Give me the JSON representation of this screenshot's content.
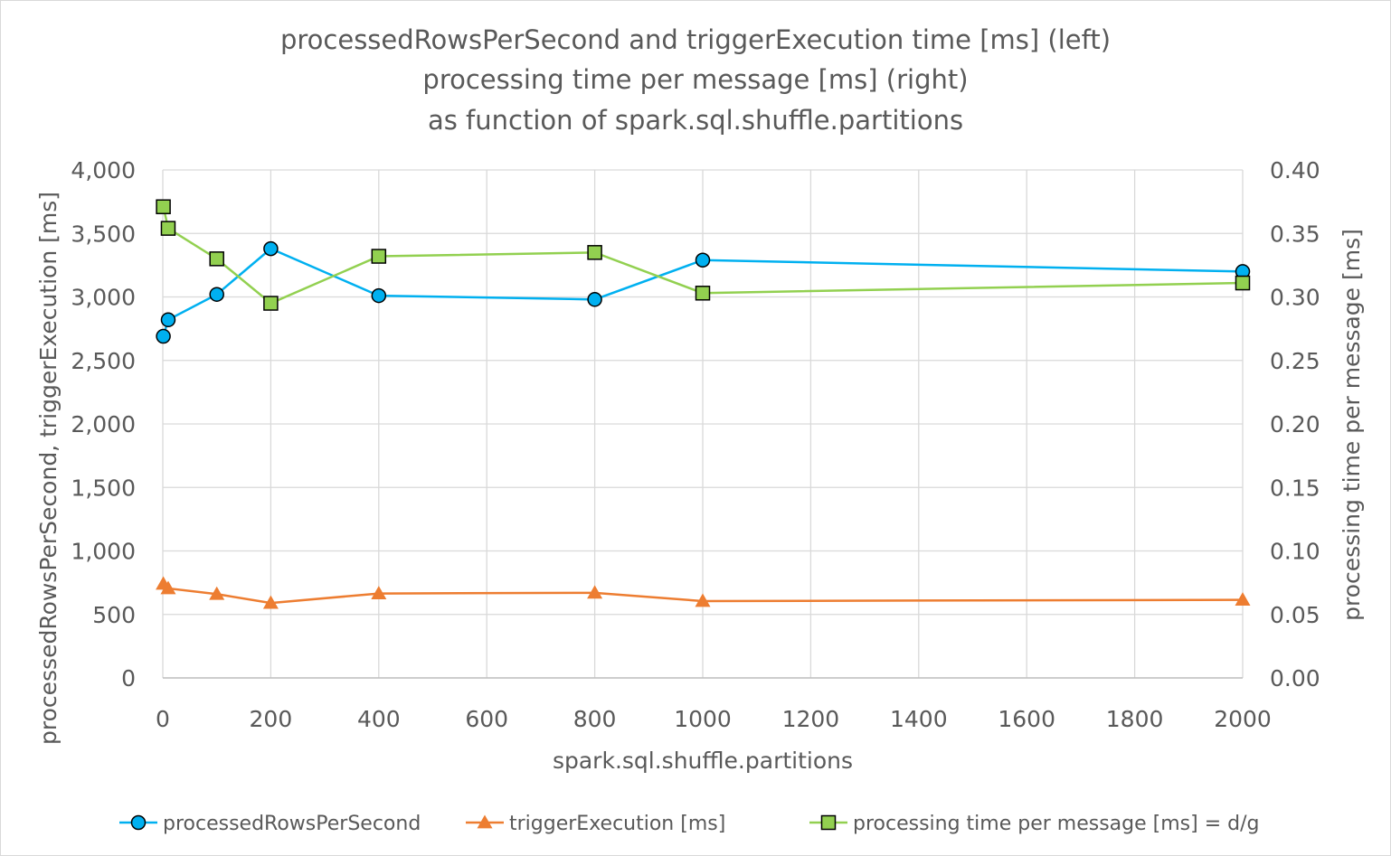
{
  "chart_data": {
    "type": "line",
    "title_lines": [
      "processedRowsPerSecond and triggerExecution time [ms] (left)",
      "processing time per message [ms] (right)",
      "as function of spark.sql.shuffle.partitions"
    ],
    "xlabel": "spark.sql.shuffle.partitions",
    "ylabel_left": "processedRowsPerSecond, triggerExecution [ms]",
    "ylabel_right": "processing time per message [ms]",
    "x_axis": {
      "range": [
        0,
        2000
      ],
      "ticks": [
        0,
        200,
        400,
        600,
        800,
        1000,
        1200,
        1400,
        1600,
        1800,
        2000
      ],
      "tick_labels": [
        "0",
        "200",
        "400",
        "600",
        "800",
        "1000",
        "1200",
        "1400",
        "1600",
        "1800",
        "2000"
      ]
    },
    "y_left": {
      "range": [
        0,
        4000
      ],
      "ticks": [
        0,
        500,
        1000,
        1500,
        2000,
        2500,
        3000,
        3500,
        4000
      ],
      "tick_labels": [
        "0",
        "500",
        "1,000",
        "1,500",
        "2,000",
        "2,500",
        "3,000",
        "3,500",
        "4,000"
      ]
    },
    "y_right": {
      "range": [
        0,
        0.4
      ],
      "ticks": [
        0,
        0.05,
        0.1,
        0.15,
        0.2,
        0.25,
        0.3,
        0.35,
        0.4
      ],
      "tick_labels": [
        "0.00",
        "0.05",
        "0.10",
        "0.15",
        "0.20",
        "0.25",
        "0.30",
        "0.35",
        "0.40"
      ]
    },
    "grid": true,
    "legend_position": "bottom",
    "series": [
      {
        "name": "processedRowsPerSecond",
        "axis": "left",
        "marker": "circle",
        "color": "#00B0F0",
        "x": [
          1,
          10,
          100,
          200,
          400,
          800,
          1000,
          2000
        ],
        "values": [
          2690,
          2820,
          3020,
          3380,
          3010,
          2980,
          3290,
          3200
        ]
      },
      {
        "name": "triggerExecution [ms]",
        "axis": "left",
        "marker": "triangle",
        "color": "#ED7D31",
        "x": [
          1,
          10,
          100,
          200,
          400,
          800,
          1000,
          2000
        ],
        "values": [
          740,
          705,
          660,
          590,
          665,
          670,
          605,
          615
        ]
      },
      {
        "name": "processing time per message [ms] = d/g",
        "axis": "right",
        "marker": "square",
        "color": "#92D050",
        "x": [
          1,
          10,
          100,
          200,
          400,
          800,
          1000,
          2000
        ],
        "values": [
          0.371,
          0.354,
          0.33,
          0.295,
          0.332,
          0.335,
          0.303,
          0.311
        ]
      }
    ]
  }
}
